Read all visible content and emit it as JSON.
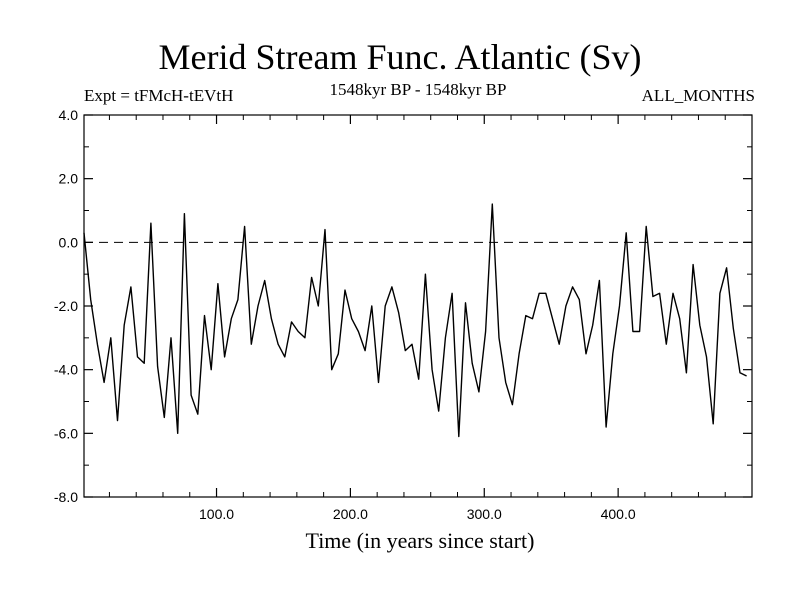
{
  "chart_data": {
    "type": "line",
    "title": "Merid Stream Func. Atlantic (Sv)",
    "subtitle_left": "Expt = tFMcH-tEVtH",
    "subtitle_center": "1548kyr BP - 1548kyr BP",
    "subtitle_right": "ALL_MONTHS",
    "xlabel": "Time (in years since start)",
    "ylabel": "",
    "xlim": [
      1,
      500
    ],
    "ylim": [
      -8,
      4
    ],
    "x_ticks": [
      100,
      200,
      300,
      400
    ],
    "x_tick_labels": [
      "100.0",
      "200.0",
      "300.0",
      "400.0"
    ],
    "y_ticks": [
      4,
      2,
      0,
      -2,
      -4,
      -6,
      -8
    ],
    "y_tick_labels": [
      "4.0",
      "2.0",
      "0.0",
      "-2.0",
      "-4.0",
      "-6.0",
      "-8.0"
    ],
    "reference_line": {
      "y": 0,
      "style": "dashed"
    },
    "series": [
      {
        "name": "Merid Stream Func. Atlantic",
        "x_start": 1,
        "x_step": 5,
        "values": [
          0.3,
          -1.8,
          -3.2,
          -4.4,
          -3.0,
          -5.6,
          -2.6,
          -1.4,
          -3.6,
          -3.8,
          0.6,
          -3.9,
          -5.5,
          -3.0,
          -6.0,
          0.9,
          -4.8,
          -5.4,
          -2.3,
          -4.0,
          -1.3,
          -3.6,
          -2.4,
          -1.8,
          0.5,
          -3.2,
          -2.0,
          -1.2,
          -2.4,
          -3.2,
          -3.6,
          -2.5,
          -2.8,
          -3.0,
          -1.1,
          -2.0,
          0.4,
          -4.0,
          -3.5,
          -1.5,
          -2.4,
          -2.8,
          -3.4,
          -2.0,
          -4.4,
          -2.0,
          -1.4,
          -2.2,
          -3.4,
          -3.2,
          -4.3,
          -1.0,
          -4.0,
          -5.3,
          -3.0,
          -1.6,
          -6.1,
          -1.9,
          -3.8,
          -4.7,
          -2.8,
          1.2,
          -3.0,
          -4.4,
          -5.1,
          -3.5,
          -2.3,
          -2.4,
          -1.6,
          -1.6,
          -2.4,
          -3.2,
          -2.0,
          -1.4,
          -1.8,
          -3.5,
          -2.6,
          -1.2,
          -5.8,
          -3.5,
          -2.0,
          0.3,
          -2.8,
          -2.8,
          0.5,
          -1.7,
          -1.6,
          -3.2,
          -1.6,
          -2.4,
          -4.1,
          -0.7,
          -2.6,
          -3.6,
          -5.7,
          -1.6,
          -0.8,
          -2.7,
          -4.1,
          -4.2
        ]
      }
    ]
  }
}
